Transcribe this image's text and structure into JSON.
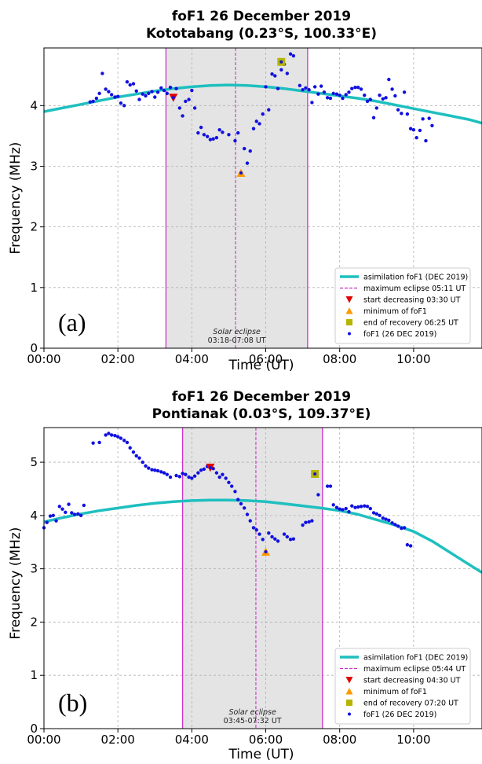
{
  "chart_data": [
    {
      "type": "scatter",
      "title": "foF1 26 December 2019",
      "subtitle": "Kototabang (0.23°S, 100.33°E)",
      "xlabel": "Time (UT)",
      "ylabel": "Frequency (MHz)",
      "xlim": [
        0,
        11.85
      ],
      "ylim": [
        0,
        4.95
      ],
      "xticks": [
        "00:00",
        "02:00",
        "04:00",
        "06:00",
        "08:00",
        "10:00"
      ],
      "yticks": [
        "0",
        "1",
        "2",
        "3",
        "4"
      ],
      "grid": true,
      "legend_position": "lower-right",
      "panel_label": "(a)",
      "eclipse_label": "Solar eclipse",
      "eclipse_range_label": "03:18-07:08 UT",
      "eclipse_start": 3.3,
      "eclipse_end": 7.133,
      "max_eclipse": 5.183,
      "legend": [
        "asimilation foF1 (DEC 2019)",
        "maximum eclipse 05:11 UT",
        "start decreasing 03:30 UT",
        "minimum of foF1",
        "end of recovery 06:25 UT",
        "foF1 (26 DEC 2019)"
      ],
      "colors": {
        "curve": "#1fbfbf",
        "points": "#1010e0",
        "eclipse_lines": "#cc33cc",
        "max_line": "#cc33cc",
        "start": "#e00000",
        "minimum": "#ff9900",
        "recovery": "#b5b500",
        "shade": "#e4e4e4"
      },
      "curve": {
        "x": [
          0,
          0.5,
          1,
          1.5,
          2,
          2.5,
          3,
          3.5,
          4,
          4.5,
          5,
          5.5,
          6,
          6.5,
          7,
          7.5,
          8,
          8.5,
          9,
          9.5,
          10,
          10.5,
          11,
          11.5,
          11.85
        ],
        "y": [
          3.9,
          3.96,
          4.02,
          4.08,
          4.14,
          4.19,
          4.24,
          4.28,
          4.31,
          4.33,
          4.34,
          4.33,
          4.31,
          4.28,
          4.24,
          4.2,
          4.16,
          4.12,
          4.07,
          4.01,
          3.95,
          3.89,
          3.83,
          3.77,
          3.71
        ]
      },
      "start_marker": {
        "x": 3.5,
        "y": 4.13
      },
      "min_marker": {
        "x": 5.33,
        "y": 2.89
      },
      "recovery_marker": {
        "x": 6.42,
        "y": 4.72
      },
      "points": {
        "x": [
          1.25,
          1.33,
          1.42,
          1.5,
          1.58,
          1.67,
          1.75,
          1.83,
          1.92,
          2.0,
          2.08,
          2.17,
          2.25,
          2.33,
          2.42,
          2.5,
          2.58,
          2.67,
          2.75,
          2.83,
          2.92,
          3.0,
          3.08,
          3.17,
          3.25,
          3.33,
          3.42,
          3.58,
          3.67,
          3.75,
          3.83,
          3.92,
          4.0,
          4.08,
          4.17,
          4.25,
          4.33,
          4.42,
          4.5,
          4.58,
          4.67,
          4.75,
          4.83,
          5.0,
          5.17,
          5.25,
          5.42,
          5.5,
          5.58,
          5.67,
          5.75,
          5.83,
          5.92,
          6.0,
          6.08,
          6.17,
          6.25,
          6.33,
          6.42,
          6.5,
          6.58,
          6.67,
          6.75,
          6.92,
          7.0,
          7.08,
          7.17,
          7.25,
          7.33,
          7.42,
          7.5,
          7.58,
          7.67,
          7.75,
          7.83,
          7.92,
          8.0,
          8.08,
          8.17,
          8.25,
          8.33,
          8.42,
          8.5,
          8.58,
          8.67,
          8.75,
          8.83,
          8.92,
          9.0,
          9.08,
          9.17,
          9.25,
          9.33,
          9.42,
          9.5,
          9.58,
          9.67,
          9.75,
          9.83,
          9.92,
          10.0,
          10.08,
          10.17,
          10.25,
          10.33,
          10.42,
          10.5
        ],
        "y": [
          4.06,
          4.07,
          4.12,
          4.2,
          4.53,
          4.27,
          4.23,
          4.18,
          4.14,
          4.15,
          4.04,
          4.0,
          4.39,
          4.34,
          4.36,
          4.24,
          4.1,
          4.19,
          4.16,
          4.2,
          4.23,
          4.14,
          4.22,
          4.29,
          4.25,
          4.2,
          4.3,
          4.28,
          3.96,
          3.83,
          4.07,
          4.1,
          4.25,
          3.96,
          3.55,
          3.64,
          3.52,
          3.49,
          3.44,
          3.45,
          3.47,
          3.6,
          3.56,
          3.52,
          3.42,
          3.55,
          3.29,
          3.05,
          3.25,
          3.62,
          3.74,
          3.7,
          3.86,
          4.31,
          3.93,
          4.52,
          4.49,
          4.28,
          4.59,
          4.68,
          4.53,
          4.85,
          4.82,
          4.33,
          4.26,
          4.29,
          4.26,
          4.05,
          4.31,
          4.19,
          4.32,
          4.22,
          4.13,
          4.12,
          4.2,
          4.19,
          4.17,
          4.12,
          4.18,
          4.22,
          4.28,
          4.3,
          4.3,
          4.27,
          4.17,
          4.07,
          4.1,
          3.8,
          3.96,
          4.17,
          4.11,
          4.13,
          4.43,
          4.27,
          4.16,
          3.93,
          3.87,
          4.22,
          3.86,
          3.62,
          3.6,
          3.47,
          3.59,
          3.78,
          3.42,
          3.79,
          3.67
        ]
      }
    },
    {
      "type": "scatter",
      "title": "foF1 26 December 2019",
      "subtitle": "Pontianak (0.03°S, 109.37°E)",
      "xlabel": "Time (UT)",
      "ylabel": "Frequency (MHz)",
      "xlim": [
        0,
        11.85
      ],
      "ylim": [
        0,
        5.65
      ],
      "xticks": [
        "00:00",
        "02:00",
        "04:00",
        "06:00",
        "08:00",
        "10:00"
      ],
      "yticks": [
        "0",
        "1",
        "2",
        "3",
        "4",
        "5"
      ],
      "grid": true,
      "legend_position": "lower-right",
      "panel_label": "(b)",
      "eclipse_label": "Solar eclipse",
      "eclipse_range_label": "03:45-07:32 UT",
      "eclipse_start": 3.75,
      "eclipse_end": 7.533,
      "max_eclipse": 5.733,
      "legend": [
        "asimilation foF1 (DEC 2019)",
        "maximum eclipse 05:44 UT",
        "start decreasing 04:30 UT",
        "minimum of foF1",
        "end of recovery 07:20 UT",
        "foF1 (26 DEC 2019)"
      ],
      "colors": {
        "curve": "#1fbfbf",
        "points": "#1010e0",
        "eclipse_lines": "#cc33cc",
        "max_line": "#cc33cc",
        "start": "#e00000",
        "minimum": "#ff9900",
        "recovery": "#b5b500",
        "shade": "#e4e4e4"
      },
      "curve": {
        "x": [
          0,
          0.5,
          1,
          1.5,
          2,
          2.5,
          3,
          3.5,
          4,
          4.5,
          5,
          5.5,
          6,
          6.5,
          7,
          7.5,
          8,
          8.5,
          9,
          9.5,
          10,
          10.5,
          11,
          11.5,
          11.85
        ],
        "y": [
          3.88,
          3.96,
          4.03,
          4.09,
          4.14,
          4.19,
          4.23,
          4.26,
          4.28,
          4.29,
          4.29,
          4.28,
          4.26,
          4.22,
          4.18,
          4.14,
          4.09,
          4.02,
          3.92,
          3.82,
          3.7,
          3.52,
          3.3,
          3.08,
          2.93
        ]
      },
      "start_marker": {
        "x": 4.5,
        "y": 4.9
      },
      "min_marker": {
        "x": 6.0,
        "y": 3.32
      },
      "recovery_marker": {
        "x": 7.33,
        "y": 4.78
      },
      "points": {
        "x": [
          0.0,
          0.08,
          0.17,
          0.25,
          0.33,
          0.42,
          0.5,
          0.58,
          0.67,
          0.75,
          0.83,
          0.92,
          1.0,
          1.08,
          1.33,
          1.5,
          1.67,
          1.75,
          1.83,
          1.92,
          2.0,
          2.08,
          2.17,
          2.25,
          2.33,
          2.42,
          2.5,
          2.58,
          2.67,
          2.75,
          2.83,
          2.92,
          3.0,
          3.08,
          3.17,
          3.25,
          3.33,
          3.42,
          3.58,
          3.67,
          3.75,
          3.83,
          3.92,
          4.0,
          4.08,
          4.17,
          4.25,
          4.33,
          4.42,
          4.58,
          4.67,
          4.75,
          4.83,
          4.92,
          5.0,
          5.08,
          5.17,
          5.25,
          5.33,
          5.42,
          5.5,
          5.58,
          5.67,
          5.75,
          5.83,
          5.92,
          6.08,
          6.17,
          6.25,
          6.33,
          6.5,
          6.58,
          6.67,
          6.75,
          7.0,
          7.08,
          7.17,
          7.25,
          7.42,
          7.67,
          7.75,
          7.83,
          7.92,
          8.0,
          8.08,
          8.17,
          8.25,
          8.33,
          8.42,
          8.5,
          8.58,
          8.67,
          8.75,
          8.83,
          8.92,
          9.0,
          9.08,
          9.17,
          9.25,
          9.33,
          9.42,
          9.5,
          9.58,
          9.67,
          9.75,
          9.83,
          9.92
        ],
        "y": [
          3.77,
          3.87,
          3.99,
          4.0,
          3.9,
          4.17,
          4.12,
          4.06,
          4.21,
          4.05,
          4.02,
          4.03,
          4.0,
          4.19,
          5.36,
          5.37,
          5.51,
          5.54,
          5.51,
          5.5,
          5.48,
          5.45,
          5.41,
          5.37,
          5.27,
          5.19,
          5.12,
          5.08,
          5.0,
          4.93,
          4.89,
          4.86,
          4.85,
          4.84,
          4.82,
          4.8,
          4.77,
          4.72,
          4.75,
          4.73,
          4.79,
          4.77,
          4.72,
          4.7,
          4.74,
          4.8,
          4.85,
          4.87,
          4.92,
          4.88,
          4.8,
          4.72,
          4.77,
          4.7,
          4.62,
          4.55,
          4.45,
          4.3,
          4.22,
          4.14,
          4.02,
          3.9,
          3.77,
          3.73,
          3.65,
          3.55,
          3.67,
          3.6,
          3.56,
          3.52,
          3.65,
          3.6,
          3.55,
          3.56,
          3.82,
          3.87,
          3.88,
          3.9,
          4.39,
          4.55,
          4.55,
          4.2,
          4.15,
          4.12,
          4.11,
          4.13,
          4.07,
          4.18,
          4.15,
          4.16,
          4.17,
          4.18,
          4.17,
          4.13,
          4.05,
          4.03,
          4.0,
          3.95,
          3.93,
          3.91,
          3.86,
          3.83,
          3.8,
          3.76,
          3.77,
          3.45,
          3.43
        ]
      }
    }
  ]
}
